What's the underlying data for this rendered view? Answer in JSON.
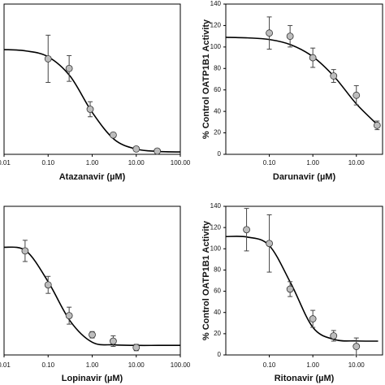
{
  "chart_data": [
    {
      "type": "scatter",
      "x_label": "Atazanavir (µM)",
      "xscale": "log",
      "x": [
        0.1,
        0.3,
        0.9,
        3,
        10,
        30
      ],
      "values": [
        89,
        80,
        42,
        18,
        5,
        3
      ],
      "errors": [
        22,
        12,
        7,
        2,
        2,
        2
      ],
      "fit": {
        "x": [
          0.01,
          0.0316,
          0.1,
          0.316,
          1,
          3.16,
          10,
          31.6,
          100
        ],
        "values": [
          97.6,
          96.3,
          90.9,
          72.8,
          39.1,
          13.9,
          4.9,
          2.7,
          2.2
        ]
      },
      "xlim": [
        0.01,
        100
      ],
      "ylim": [
        0,
        140
      ],
      "xticks": [
        0.01,
        {
          "value": 0.1,
          "label": "0.10"
        },
        {
          "value": 1,
          "label": "1.00"
        },
        {
          "value": 10,
          "label": "10.00"
        },
        {
          "value": 100,
          "label": "100.00"
        }
      ],
      "color": "#bdbdbd"
    },
    {
      "type": "scatter",
      "x_label": "Darunavir (µM)",
      "y_label": "% Control OATP1B1 Activity",
      "xscale": "log",
      "x": [
        0.1,
        0.3,
        1,
        3,
        10,
        30
      ],
      "values": [
        113,
        110,
        90,
        73,
        55,
        27
      ],
      "errors": [
        15,
        10,
        9,
        6,
        9,
        4
      ],
      "fit": {
        "x": [
          0.01,
          0.0316,
          0.1,
          0.316,
          1,
          3.16,
          10,
          31.6
        ],
        "values": [
          109,
          108.5,
          107,
          102,
          91,
          72,
          47,
          27
        ]
      },
      "xlim": [
        0.01,
        40
      ],
      "ylim": [
        0,
        140
      ],
      "xticks": [
        {
          "value": 0.1,
          "label": "0.10"
        },
        {
          "value": 1,
          "label": "1.00"
        },
        {
          "value": 10,
          "label": "10.00"
        }
      ],
      "yticks": [
        0,
        20,
        40,
        60,
        80,
        100,
        120,
        140
      ],
      "color": "#bdbdbd"
    },
    {
      "type": "scatter",
      "x_label": "Lopinavir (µM)",
      "xscale": "log",
      "x": [
        0.03,
        0.1,
        0.3,
        1,
        3,
        10
      ],
      "values": [
        98,
        66,
        37,
        19,
        13,
        7
      ],
      "errors": [
        10,
        8,
        8,
        3,
        5,
        3
      ],
      "fit": {
        "x": [
          0.01,
          0.0316,
          0.1,
          0.316,
          1,
          3.16,
          10,
          31.6,
          100
        ],
        "values": [
          101.5,
          98,
          69,
          32,
          12,
          9.5,
          9,
          9,
          9
        ]
      },
      "xlim": [
        0.01,
        100
      ],
      "ylim": [
        0,
        140
      ],
      "xticks": [
        0.01,
        {
          "value": 0.1,
          "label": "0.10"
        },
        {
          "value": 1,
          "label": "1.00"
        },
        {
          "value": 10,
          "label": "10.00"
        },
        {
          "value": 100,
          "label": "100.00"
        }
      ],
      "color": "#bdbdbd"
    },
    {
      "type": "scatter",
      "x_label": "Ritonavir (µM)",
      "y_label": "% Control OATP1B1 Activity",
      "xscale": "log",
      "x": [
        0.03,
        0.1,
        0.3,
        1,
        3,
        10
      ],
      "values": [
        118,
        105,
        62,
        34,
        18,
        8
      ],
      "errors": [
        20,
        27,
        7,
        8,
        5,
        8
      ],
      "fit": {
        "x": [
          0.01,
          0.0316,
          0.1,
          0.316,
          1,
          3.16,
          10,
          31.6
        ],
        "values": [
          111.5,
          111,
          103,
          67,
          26,
          14.5,
          13.2,
          13
        ]
      },
      "xlim": [
        0.01,
        40
      ],
      "ylim": [
        0,
        140
      ],
      "xticks": [
        {
          "value": 0.1,
          "label": "0.10"
        },
        {
          "value": 1,
          "label": "1.00"
        },
        {
          "value": 10,
          "label": "10.00"
        }
      ],
      "yticks": [
        0,
        20,
        40,
        60,
        80,
        100,
        120,
        140
      ],
      "color": "#bdbdbd"
    }
  ]
}
